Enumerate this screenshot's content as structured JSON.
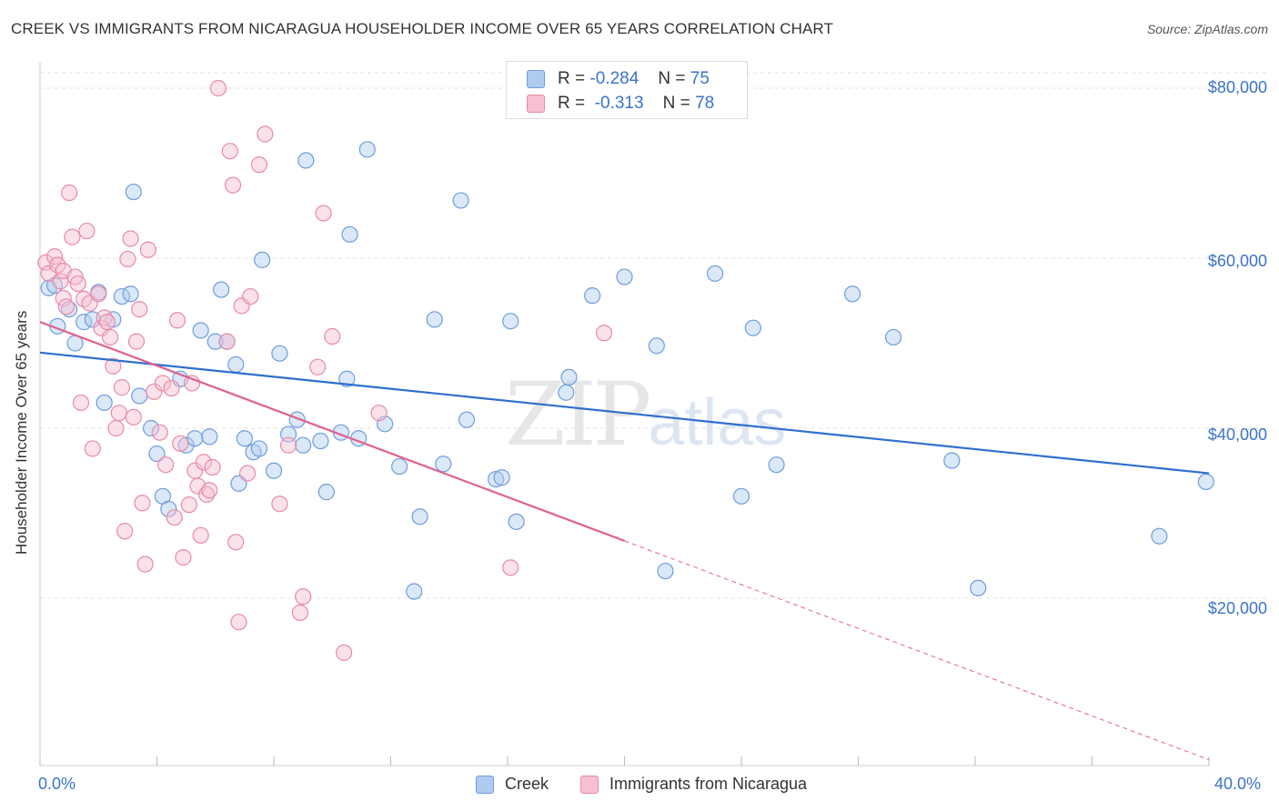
{
  "title": "CREEK VS IMMIGRANTS FROM NICARAGUA HOUSEHOLDER INCOME OVER 65 YEARS CORRELATION CHART",
  "source": "Source: ZipAtlas.com",
  "watermark": {
    "zip": "ZIP",
    "atlas": "atlas"
  },
  "legend_top": {
    "rows": [
      {
        "r_label": "R =",
        "r_value": "-0.284",
        "n_label": "N =",
        "n_value": "75"
      },
      {
        "r_label": "R =",
        "r_value": "-0.313",
        "n_label": "N =",
        "n_value": "78"
      }
    ]
  },
  "legend_bottom": {
    "series1": "Creek",
    "series2": "Immigrants from Nicaragua"
  },
  "colors": {
    "creek_fill": "#aecbf0",
    "creek_stroke": "#6e9ddc",
    "creek_line": "#2e6fcc",
    "nic_fill": "#f7bfd0",
    "nic_stroke": "#e88aa8",
    "nic_line": "#e0608d",
    "tick_text": "#3a73c9",
    "grid": "#e2e2e2"
  },
  "chart_data": {
    "type": "scatter",
    "title": "CREEK VS IMMIGRANTS FROM NICARAGUA HOUSEHOLDER INCOME OVER 65 YEARS CORRELATION CHART",
    "xlabel": "",
    "ylabel": "Householder Income Over 65 years",
    "xlim": [
      0,
      40
    ],
    "ylim": [
      0,
      83000
    ],
    "x_tick_labels": [
      "0.0%",
      "40.0%"
    ],
    "y_ticks": [
      20000,
      40000,
      60000,
      80000
    ],
    "y_tick_labels": [
      "$20,000",
      "$40,000",
      "$60,000",
      "$80,000"
    ],
    "grid": true,
    "legend_position": "top-center",
    "series": [
      {
        "name": "Creek",
        "r": -0.284,
        "n": 75,
        "trend": {
          "x0": 0,
          "y0": 48900,
          "x1": 40,
          "y1": 34700,
          "solid_to": 40
        },
        "points": [
          [
            0.3,
            56500
          ],
          [
            0.5,
            56800
          ],
          [
            0.6,
            52000
          ],
          [
            1.0,
            54000
          ],
          [
            1.2,
            50000
          ],
          [
            1.5,
            52500
          ],
          [
            1.8,
            52800
          ],
          [
            2.0,
            56000
          ],
          [
            2.2,
            43000
          ],
          [
            2.5,
            52800
          ],
          [
            2.8,
            55500
          ],
          [
            3.1,
            55800
          ],
          [
            3.2,
            67800
          ],
          [
            3.4,
            43800
          ],
          [
            3.8,
            40000
          ],
          [
            4.0,
            37000
          ],
          [
            4.2,
            32000
          ],
          [
            4.4,
            30500
          ],
          [
            4.8,
            45800
          ],
          [
            5.0,
            38000
          ],
          [
            5.3,
            38800
          ],
          [
            5.5,
            51500
          ],
          [
            5.8,
            39000
          ],
          [
            6.0,
            50200
          ],
          [
            6.2,
            56300
          ],
          [
            6.4,
            50200
          ],
          [
            6.7,
            47500
          ],
          [
            6.8,
            33500
          ],
          [
            7.0,
            38800
          ],
          [
            7.3,
            37200
          ],
          [
            7.5,
            37600
          ],
          [
            7.6,
            59800
          ],
          [
            8.0,
            35000
          ],
          [
            8.2,
            48800
          ],
          [
            8.5,
            39300
          ],
          [
            8.8,
            41000
          ],
          [
            9.0,
            38000
          ],
          [
            9.1,
            71500
          ],
          [
            9.6,
            38500
          ],
          [
            9.8,
            32500
          ],
          [
            10.3,
            39500
          ],
          [
            10.5,
            45800
          ],
          [
            10.6,
            62800
          ],
          [
            10.9,
            38800
          ],
          [
            11.2,
            72800
          ],
          [
            11.8,
            40500
          ],
          [
            12.3,
            35500
          ],
          [
            12.8,
            20800
          ],
          [
            13.0,
            29600
          ],
          [
            13.5,
            52800
          ],
          [
            13.8,
            35800
          ],
          [
            14.4,
            66800
          ],
          [
            14.6,
            41000
          ],
          [
            15.6,
            34000
          ],
          [
            15.8,
            34200
          ],
          [
            16.1,
            52600
          ],
          [
            16.3,
            29000
          ],
          [
            18.0,
            44200
          ],
          [
            18.1,
            46000
          ],
          [
            18.9,
            55600
          ],
          [
            20.0,
            57800
          ],
          [
            21.1,
            49700
          ],
          [
            21.4,
            23200
          ],
          [
            23.1,
            58200
          ],
          [
            24.0,
            32000
          ],
          [
            24.4,
            51800
          ],
          [
            25.2,
            35700
          ],
          [
            27.8,
            55800
          ],
          [
            29.2,
            50700
          ],
          [
            31.2,
            36200
          ],
          [
            32.1,
            21200
          ],
          [
            38.3,
            27300
          ],
          [
            39.9,
            33700
          ]
        ]
      },
      {
        "name": "Immigrants from Nicaragua",
        "r": -0.313,
        "n": 78,
        "trend": {
          "x0": 0,
          "y0": 52500,
          "x1": 40,
          "y1": 1000,
          "solid_to": 20
        },
        "points": [
          [
            0.2,
            59500
          ],
          [
            0.3,
            58200
          ],
          [
            0.5,
            60200
          ],
          [
            0.6,
            59200
          ],
          [
            0.7,
            57300
          ],
          [
            0.8,
            58500
          ],
          [
            0.8,
            55300
          ],
          [
            0.9,
            54300
          ],
          [
            1.0,
            67700
          ],
          [
            1.1,
            62500
          ],
          [
            1.2,
            57800
          ],
          [
            1.3,
            57000
          ],
          [
            1.4,
            43000
          ],
          [
            1.5,
            55200
          ],
          [
            1.6,
            63200
          ],
          [
            1.7,
            54700
          ],
          [
            1.8,
            37600
          ],
          [
            2.0,
            55800
          ],
          [
            2.1,
            51800
          ],
          [
            2.2,
            53000
          ],
          [
            2.3,
            52500
          ],
          [
            2.4,
            50700
          ],
          [
            2.5,
            47300
          ],
          [
            2.6,
            40000
          ],
          [
            2.7,
            41800
          ],
          [
            2.8,
            44800
          ],
          [
            2.9,
            27900
          ],
          [
            3.0,
            59900
          ],
          [
            3.1,
            62300
          ],
          [
            3.2,
            41300
          ],
          [
            3.3,
            50200
          ],
          [
            3.4,
            54000
          ],
          [
            3.5,
            31200
          ],
          [
            3.6,
            24000
          ],
          [
            3.7,
            61000
          ],
          [
            3.9,
            44300
          ],
          [
            4.1,
            39500
          ],
          [
            4.2,
            45300
          ],
          [
            4.3,
            35700
          ],
          [
            4.5,
            44700
          ],
          [
            4.6,
            29500
          ],
          [
            4.7,
            52700
          ],
          [
            4.8,
            38200
          ],
          [
            4.9,
            24800
          ],
          [
            5.1,
            31000
          ],
          [
            5.2,
            45300
          ],
          [
            5.3,
            35000
          ],
          [
            5.4,
            33200
          ],
          [
            5.5,
            27400
          ],
          [
            5.6,
            36000
          ],
          [
            5.7,
            32200
          ],
          [
            5.8,
            32700
          ],
          [
            5.9,
            35400
          ],
          [
            6.1,
            80000
          ],
          [
            6.4,
            50200
          ],
          [
            6.5,
            72600
          ],
          [
            6.6,
            68600
          ],
          [
            6.7,
            26600
          ],
          [
            6.8,
            17200
          ],
          [
            6.9,
            54400
          ],
          [
            7.1,
            34700
          ],
          [
            7.2,
            55500
          ],
          [
            7.5,
            71000
          ],
          [
            7.7,
            74600
          ],
          [
            8.2,
            31100
          ],
          [
            8.5,
            38000
          ],
          [
            8.9,
            18300
          ],
          [
            9.0,
            20200
          ],
          [
            9.5,
            47200
          ],
          [
            9.7,
            65300
          ],
          [
            10.0,
            50800
          ],
          [
            10.4,
            13600
          ],
          [
            11.6,
            41800
          ],
          [
            16.1,
            23600
          ],
          [
            19.3,
            51200
          ]
        ]
      }
    ]
  }
}
